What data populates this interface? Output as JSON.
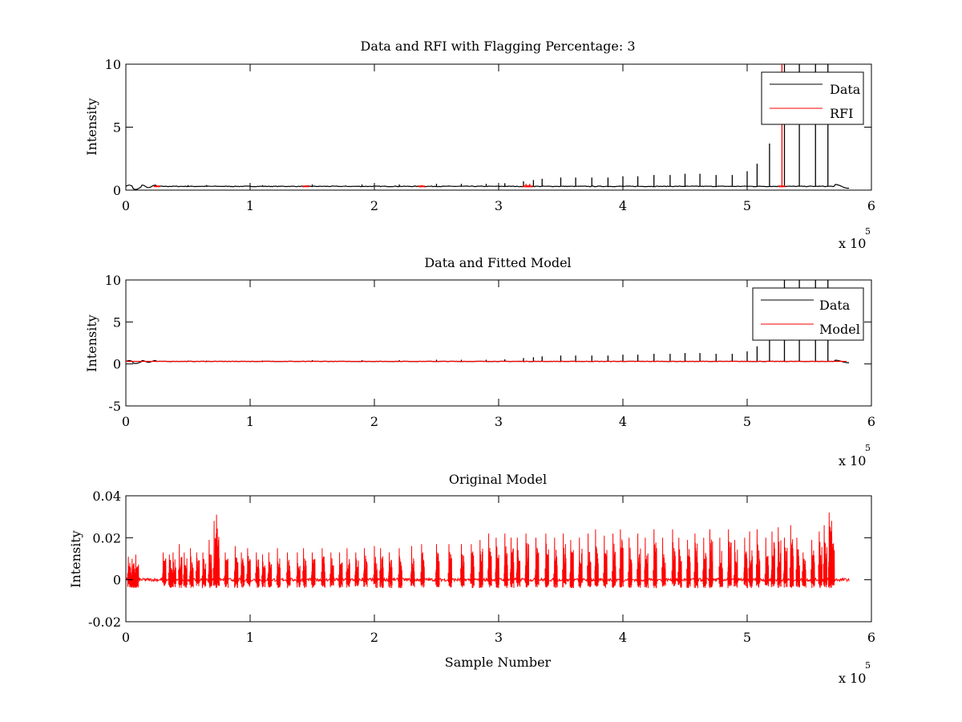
{
  "chart_data": [
    {
      "type": "line",
      "title": "Data and RFI with Flagging Percentage: 3",
      "ylabel": "Intensity",
      "xlabel": "",
      "xlim": [
        0,
        6
      ],
      "ylim": [
        0,
        10
      ],
      "xticks": [
        "0",
        "1",
        "2",
        "3",
        "4",
        "5",
        "6"
      ],
      "yticks": [
        "0",
        "5",
        "10"
      ],
      "x_multiplier": {
        "base": "x 10",
        "exponent": "5"
      },
      "legend": {
        "position": "top-right",
        "entries": [
          "Data",
          "RFI"
        ]
      },
      "colors": {
        "Data": "#000000",
        "RFI": "#ff0000"
      },
      "baseline": 0.3,
      "series": [
        {
          "name": "Data",
          "spike_x": [
            0.5,
            0.65,
            1.1,
            1.5,
            1.9,
            2.2,
            2.5,
            2.7,
            2.9,
            3.05,
            3.2,
            3.28,
            3.35,
            3.5,
            3.62,
            3.75,
            3.88,
            4.0,
            4.12,
            4.25,
            4.38,
            4.5,
            4.62,
            4.75,
            4.88,
            5.0,
            5.08,
            5.18,
            5.3,
            5.42,
            5.55,
            5.65
          ],
          "spike_y": [
            0.4,
            0.4,
            0.4,
            0.45,
            0.45,
            0.45,
            0.5,
            0.5,
            0.5,
            0.55,
            0.7,
            0.8,
            0.9,
            1.0,
            1.0,
            1.0,
            1.0,
            1.1,
            1.1,
            1.2,
            1.2,
            1.3,
            1.3,
            1.2,
            1.2,
            1.5,
            2.1,
            3.7,
            10,
            10,
            10,
            10
          ]
        },
        {
          "name": "RFI",
          "spike_x": [
            0.25,
            1.45,
            2.38,
            3.22,
            3.25,
            5.28
          ],
          "spike_y": [
            0.35,
            0.35,
            0.4,
            0.5,
            0.5,
            10
          ]
        }
      ]
    },
    {
      "type": "line",
      "title": "Data and Fitted Model",
      "ylabel": "Intensity",
      "xlabel": "",
      "xlim": [
        0,
        6
      ],
      "ylim": [
        -5,
        10
      ],
      "xticks": [
        "0",
        "1",
        "2",
        "3",
        "4",
        "5",
        "6"
      ],
      "yticks": [
        "-5",
        "0",
        "5",
        "10"
      ],
      "x_multiplier": {
        "base": "x 10",
        "exponent": "5"
      },
      "legend": {
        "position": "top-right",
        "entries": [
          "Data",
          "Model"
        ]
      },
      "colors": {
        "Data": "#000000",
        "Model": "#ff0000"
      },
      "baseline": 0.3,
      "series": [
        {
          "name": "Data",
          "spike_x": [
            0.5,
            0.65,
            1.1,
            1.5,
            1.9,
            2.2,
            2.5,
            2.7,
            2.9,
            3.05,
            3.2,
            3.28,
            3.35,
            3.5,
            3.62,
            3.75,
            3.88,
            4.0,
            4.12,
            4.25,
            4.38,
            4.5,
            4.62,
            4.75,
            4.88,
            5.0,
            5.08,
            5.18,
            5.3,
            5.42,
            5.55,
            5.65
          ],
          "spike_y": [
            0.4,
            0.4,
            0.4,
            0.45,
            0.45,
            0.45,
            0.5,
            0.5,
            0.5,
            0.55,
            0.7,
            0.8,
            0.9,
            1.0,
            1.0,
            1.0,
            1.0,
            1.1,
            1.1,
            1.2,
            1.2,
            1.3,
            1.3,
            1.2,
            1.2,
            1.5,
            2.1,
            3.7,
            10,
            10,
            10,
            10
          ]
        },
        {
          "name": "Model",
          "x": [
            0,
            5.8
          ],
          "y": [
            0.3,
            0.3
          ]
        }
      ]
    },
    {
      "type": "line",
      "title": "Original Model",
      "ylabel": "Intensity",
      "xlabel": "Sample Number",
      "xlim": [
        0,
        6
      ],
      "ylim": [
        -0.02,
        0.04
      ],
      "xticks": [
        "0",
        "1",
        "2",
        "3",
        "4",
        "5",
        "6"
      ],
      "yticks": [
        "-0.02",
        "0",
        "0.02",
        "0.04"
      ],
      "x_multiplier": {
        "base": "x 10",
        "exponent": "5"
      },
      "colors": {
        "Model": "#ff0000"
      },
      "series": [
        {
          "color": "#ff0000",
          "burst_x": [
            0.02,
            0.05,
            0.08,
            0.3,
            0.35,
            0.38,
            0.43,
            0.47,
            0.52,
            0.57,
            0.62,
            0.67,
            0.71,
            0.73,
            0.8,
            0.88,
            0.93,
            0.98,
            1.05,
            1.1,
            1.15,
            1.22,
            1.3,
            1.38,
            1.43,
            1.5,
            1.58,
            1.65,
            1.72,
            1.78,
            1.85,
            1.92,
            2.0,
            2.05,
            2.12,
            2.2,
            2.3,
            2.38,
            2.5,
            2.6,
            2.7,
            2.78,
            2.85,
            2.92,
            2.98,
            3.05,
            3.1,
            3.15,
            3.22,
            3.3,
            3.38,
            3.45,
            3.52,
            3.58,
            3.65,
            3.72,
            3.78,
            3.85,
            3.92,
            3.98,
            4.05,
            4.12,
            4.18,
            4.25,
            4.32,
            4.4,
            4.45,
            4.52,
            4.58,
            4.65,
            4.7,
            4.78,
            4.85,
            4.9,
            4.98,
            5.02,
            5.08,
            5.15,
            5.2,
            5.25,
            5.3,
            5.35,
            5.4,
            5.45,
            5.52,
            5.58,
            5.62,
            5.66,
            5.68
          ],
          "burst_peak": [
            0.011,
            0.01,
            0.012,
            0.013,
            0.012,
            0.013,
            0.017,
            0.013,
            0.015,
            0.013,
            0.013,
            0.019,
            0.028,
            0.031,
            0.013,
            0.016,
            0.013,
            0.015,
            0.013,
            0.012,
            0.013,
            0.015,
            0.013,
            0.013,
            0.015,
            0.013,
            0.015,
            0.013,
            0.013,
            0.015,
            0.013,
            0.015,
            0.016,
            0.015,
            0.013,
            0.015,
            0.016,
            0.017,
            0.017,
            0.017,
            0.017,
            0.017,
            0.019,
            0.022,
            0.02,
            0.022,
            0.02,
            0.02,
            0.022,
            0.02,
            0.022,
            0.02,
            0.022,
            0.019,
            0.02,
            0.022,
            0.024,
            0.021,
            0.022,
            0.024,
            0.02,
            0.022,
            0.02,
            0.024,
            0.02,
            0.024,
            0.02,
            0.019,
            0.022,
            0.02,
            0.024,
            0.02,
            0.024,
            0.019,
            0.02,
            0.023,
            0.024,
            0.02,
            0.023,
            0.025,
            0.02,
            0.026,
            0.02,
            0.013,
            0.019,
            0.023,
            0.026,
            0.032,
            0.028
          ]
        }
      ]
    }
  ]
}
